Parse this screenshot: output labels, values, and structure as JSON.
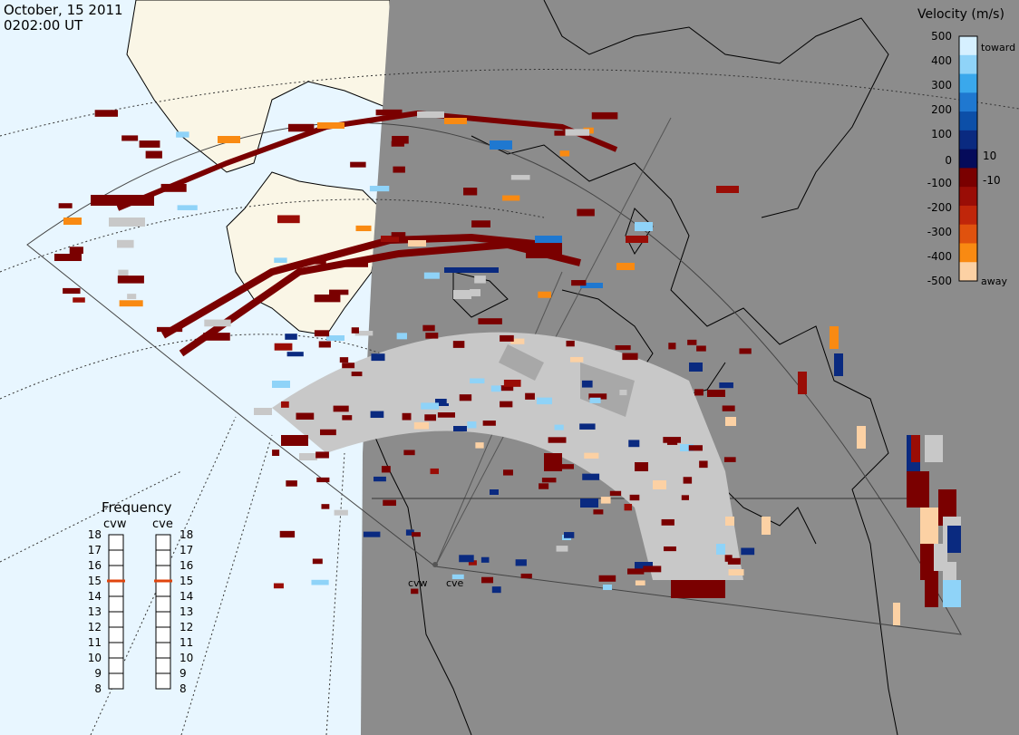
{
  "header": {
    "date": "October, 15 2011",
    "time": "0202:00 UT"
  },
  "colorbar": {
    "title": "Velocity (m/s)",
    "ticks": [
      "500",
      "400",
      "300",
      "200",
      "100",
      "10",
      "0",
      "-10",
      "-100",
      "-200",
      "-300",
      "-400",
      "-500"
    ],
    "toward_label": "toward",
    "away_label": "away",
    "colors": [
      "#d6f0ff",
      "#8fd3f8",
      "#3aa8ec",
      "#1f78d0",
      "#0c4fa8",
      "#0a2a80",
      "#050b5a",
      "#7a0000",
      "#9a0d06",
      "#c0260a",
      "#e0520e",
      "#f98a12",
      "#fcd1a4"
    ]
  },
  "frequency": {
    "title": "Frequency",
    "radars": [
      "cvw",
      "cve"
    ],
    "ticks": [
      "18",
      "17",
      "16",
      "15",
      "14",
      "13",
      "12",
      "11",
      "10",
      "9",
      "8"
    ],
    "cvw_mhz": 15,
    "cve_mhz": 15
  },
  "radar_sites": [
    "cvw",
    "cve"
  ],
  "palette": {
    "nightside": "#8c8c8c",
    "dayside_ocean": "#e8f6ff",
    "dayside_land": "#faf6e6",
    "ground_scatter": "#c8c8c8",
    "gray_scatter": "#a8a8a8"
  }
}
